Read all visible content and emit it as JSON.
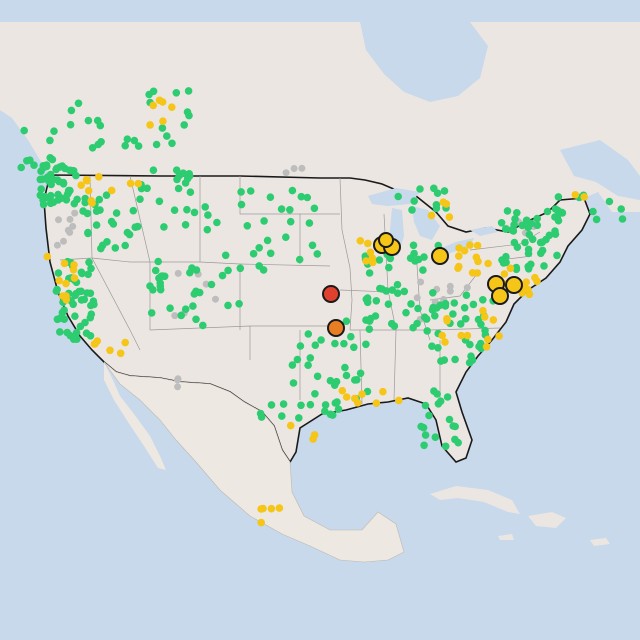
{
  "map": {
    "colors": {
      "ocean": "#c7d9ea",
      "land": "#ece6e2",
      "land_mexico": "#eee8e3",
      "border": "#1a1a1a",
      "state_line": "#9a9a9a",
      "lake": "#c7d9ea",
      "good": "#2ecc71",
      "moderate": "#f5c518",
      "unhealthy_sensitive": "#e87d24",
      "unhealthy": "#e0412e",
      "no_data": "#bdbdbd"
    },
    "icons": [
      "sensor-marker",
      "alert-marker"
    ]
  }
}
